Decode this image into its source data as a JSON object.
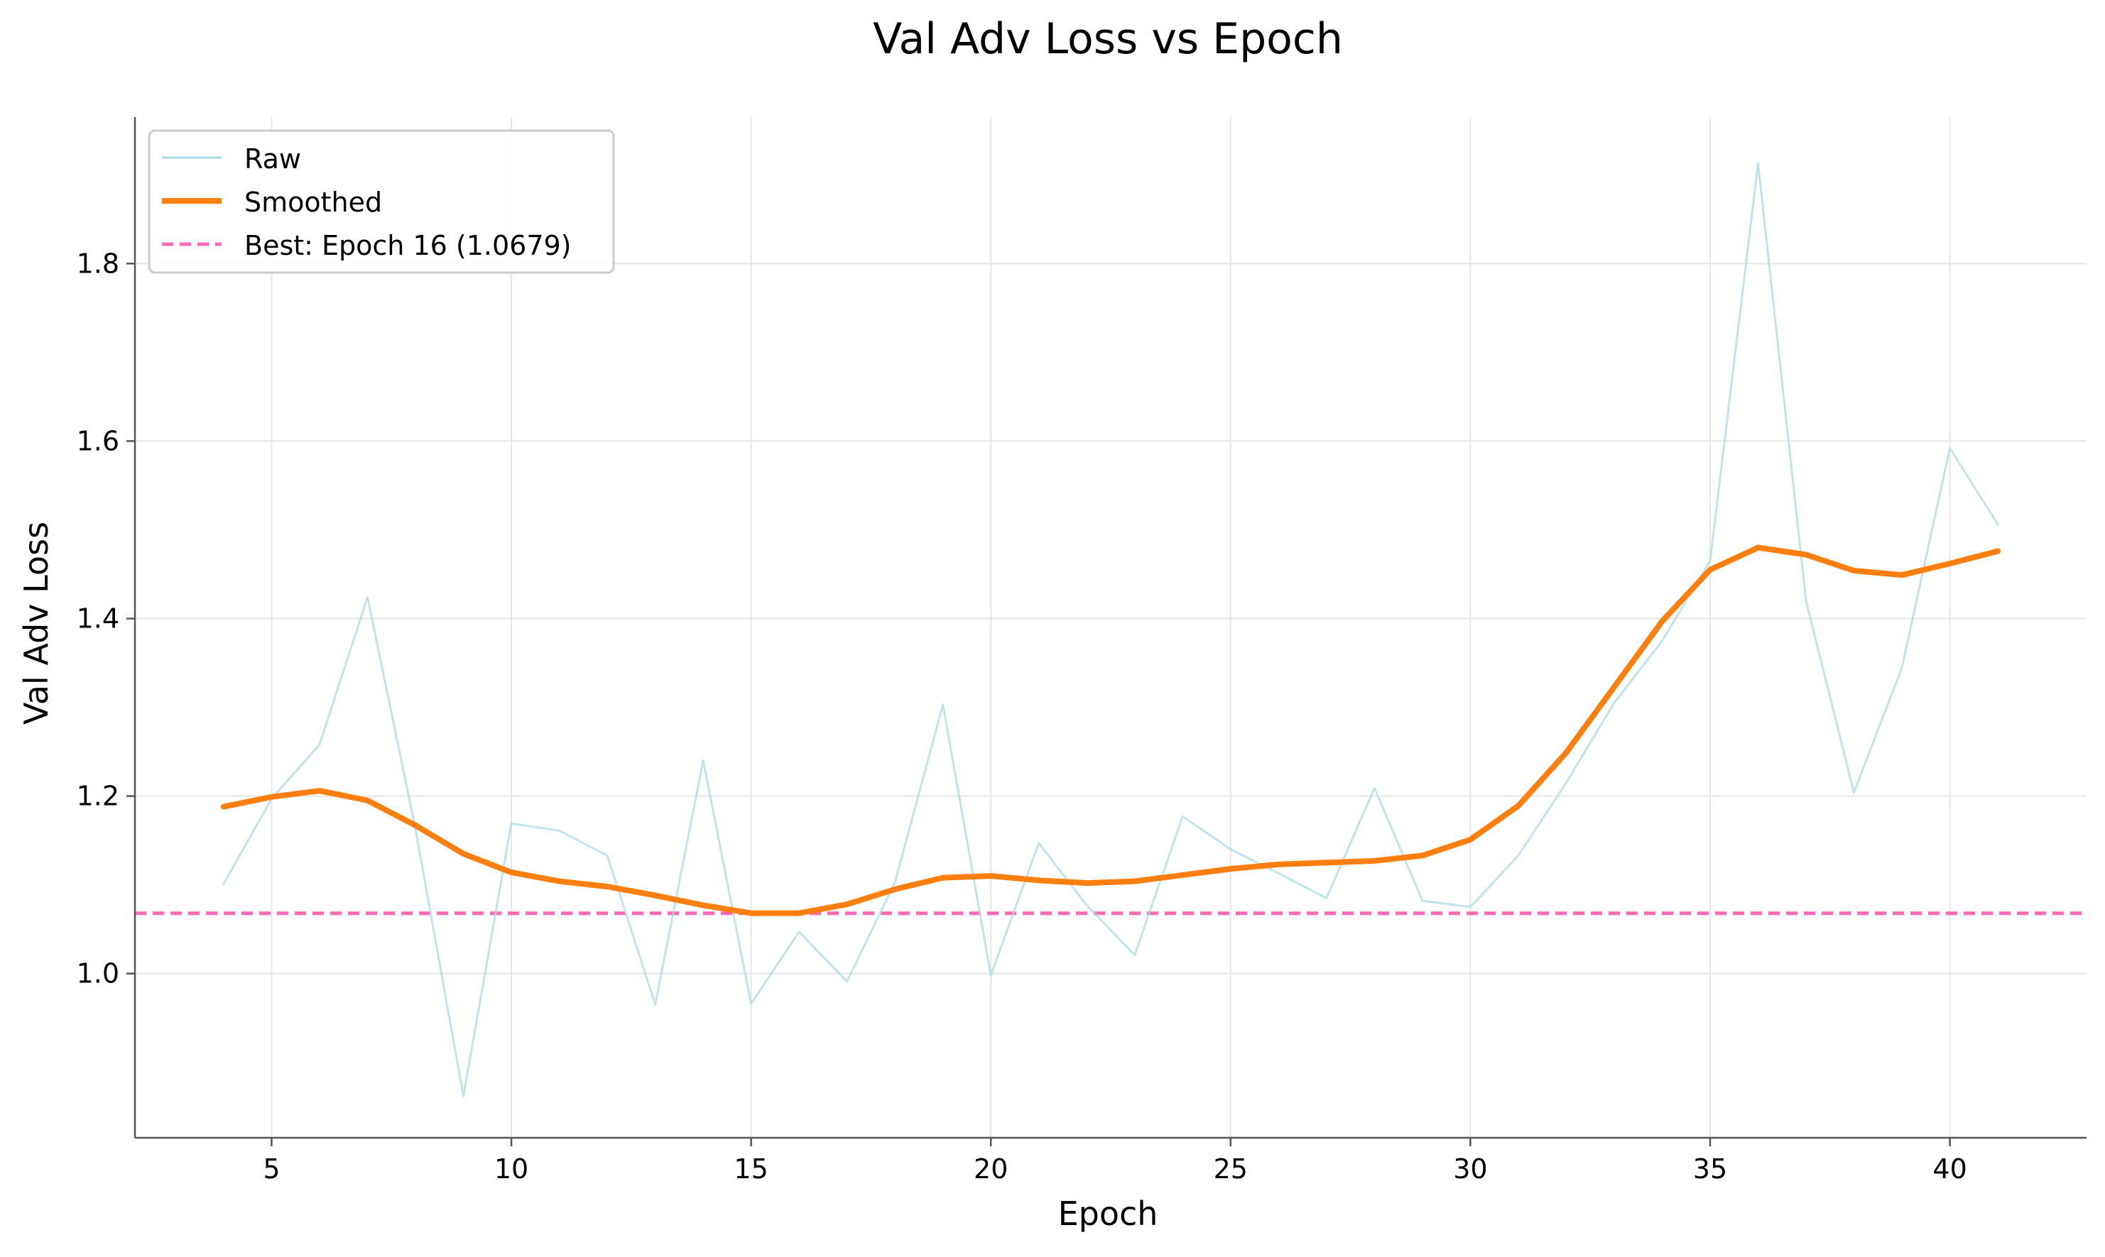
{
  "chart_data": {
    "type": "line",
    "title": "Val Adv Loss vs Epoch",
    "xlabel": "Epoch",
    "ylabel": "Val Adv Loss",
    "xlim": [
      2.15,
      42.85
    ],
    "ylim": [
      0.815,
      1.965
    ],
    "xticks": [
      5,
      10,
      15,
      20,
      25,
      30,
      35,
      40
    ],
    "xtick_labels": [
      "5",
      "10",
      "15",
      "20",
      "25",
      "30",
      "35",
      "40"
    ],
    "yticks": [
      1.0,
      1.2,
      1.4,
      1.6,
      1.8
    ],
    "ytick_labels": [
      "1.0",
      "1.2",
      "1.4",
      "1.6",
      "1.8"
    ],
    "grid": true,
    "legend_position": "upper-left",
    "x": [
      4,
      5,
      6,
      7,
      8,
      9,
      10,
      11,
      12,
      13,
      14,
      15,
      16,
      17,
      18,
      19,
      20,
      21,
      22,
      23,
      24,
      25,
      26,
      27,
      28,
      29,
      30,
      31,
      32,
      33,
      34,
      35,
      36,
      37,
      38,
      39,
      40,
      41
    ],
    "series": [
      {
        "name": "Raw",
        "role": "raw",
        "color": "#add8e6",
        "values": [
          1.101,
          1.197,
          1.258,
          1.424,
          1.163,
          0.862,
          1.169,
          1.161,
          1.133,
          0.965,
          1.24,
          0.966,
          1.047,
          0.991,
          1.103,
          1.303,
          0.998,
          1.147,
          1.077,
          1.021,
          1.177,
          1.14,
          1.113,
          1.085,
          1.209,
          1.082,
          1.075,
          1.133,
          1.215,
          1.305,
          1.375,
          1.465,
          1.913,
          1.42,
          1.204,
          1.345,
          1.592,
          1.506
        ]
      },
      {
        "name": "Smoothed",
        "role": "smoothed",
        "color": "#ff7f0e",
        "values": [
          1.188,
          1.199,
          1.206,
          1.195,
          1.167,
          1.135,
          1.114,
          1.104,
          1.098,
          1.088,
          1.077,
          1.068,
          1.068,
          1.078,
          1.095,
          1.108,
          1.11,
          1.105,
          1.102,
          1.104,
          1.111,
          1.118,
          1.123,
          1.125,
          1.127,
          1.133,
          1.151,
          1.189,
          1.249,
          1.323,
          1.397,
          1.455,
          1.48,
          1.472,
          1.454,
          1.449,
          1.462,
          1.476
        ]
      }
    ],
    "reference_line": {
      "name": "Best: Epoch 16 (1.0679)",
      "y": 1.0679,
      "color": "#ff69b4",
      "style": "dashed"
    },
    "colors": {
      "grid": "#e6e6e6",
      "axis": "#555555"
    }
  }
}
